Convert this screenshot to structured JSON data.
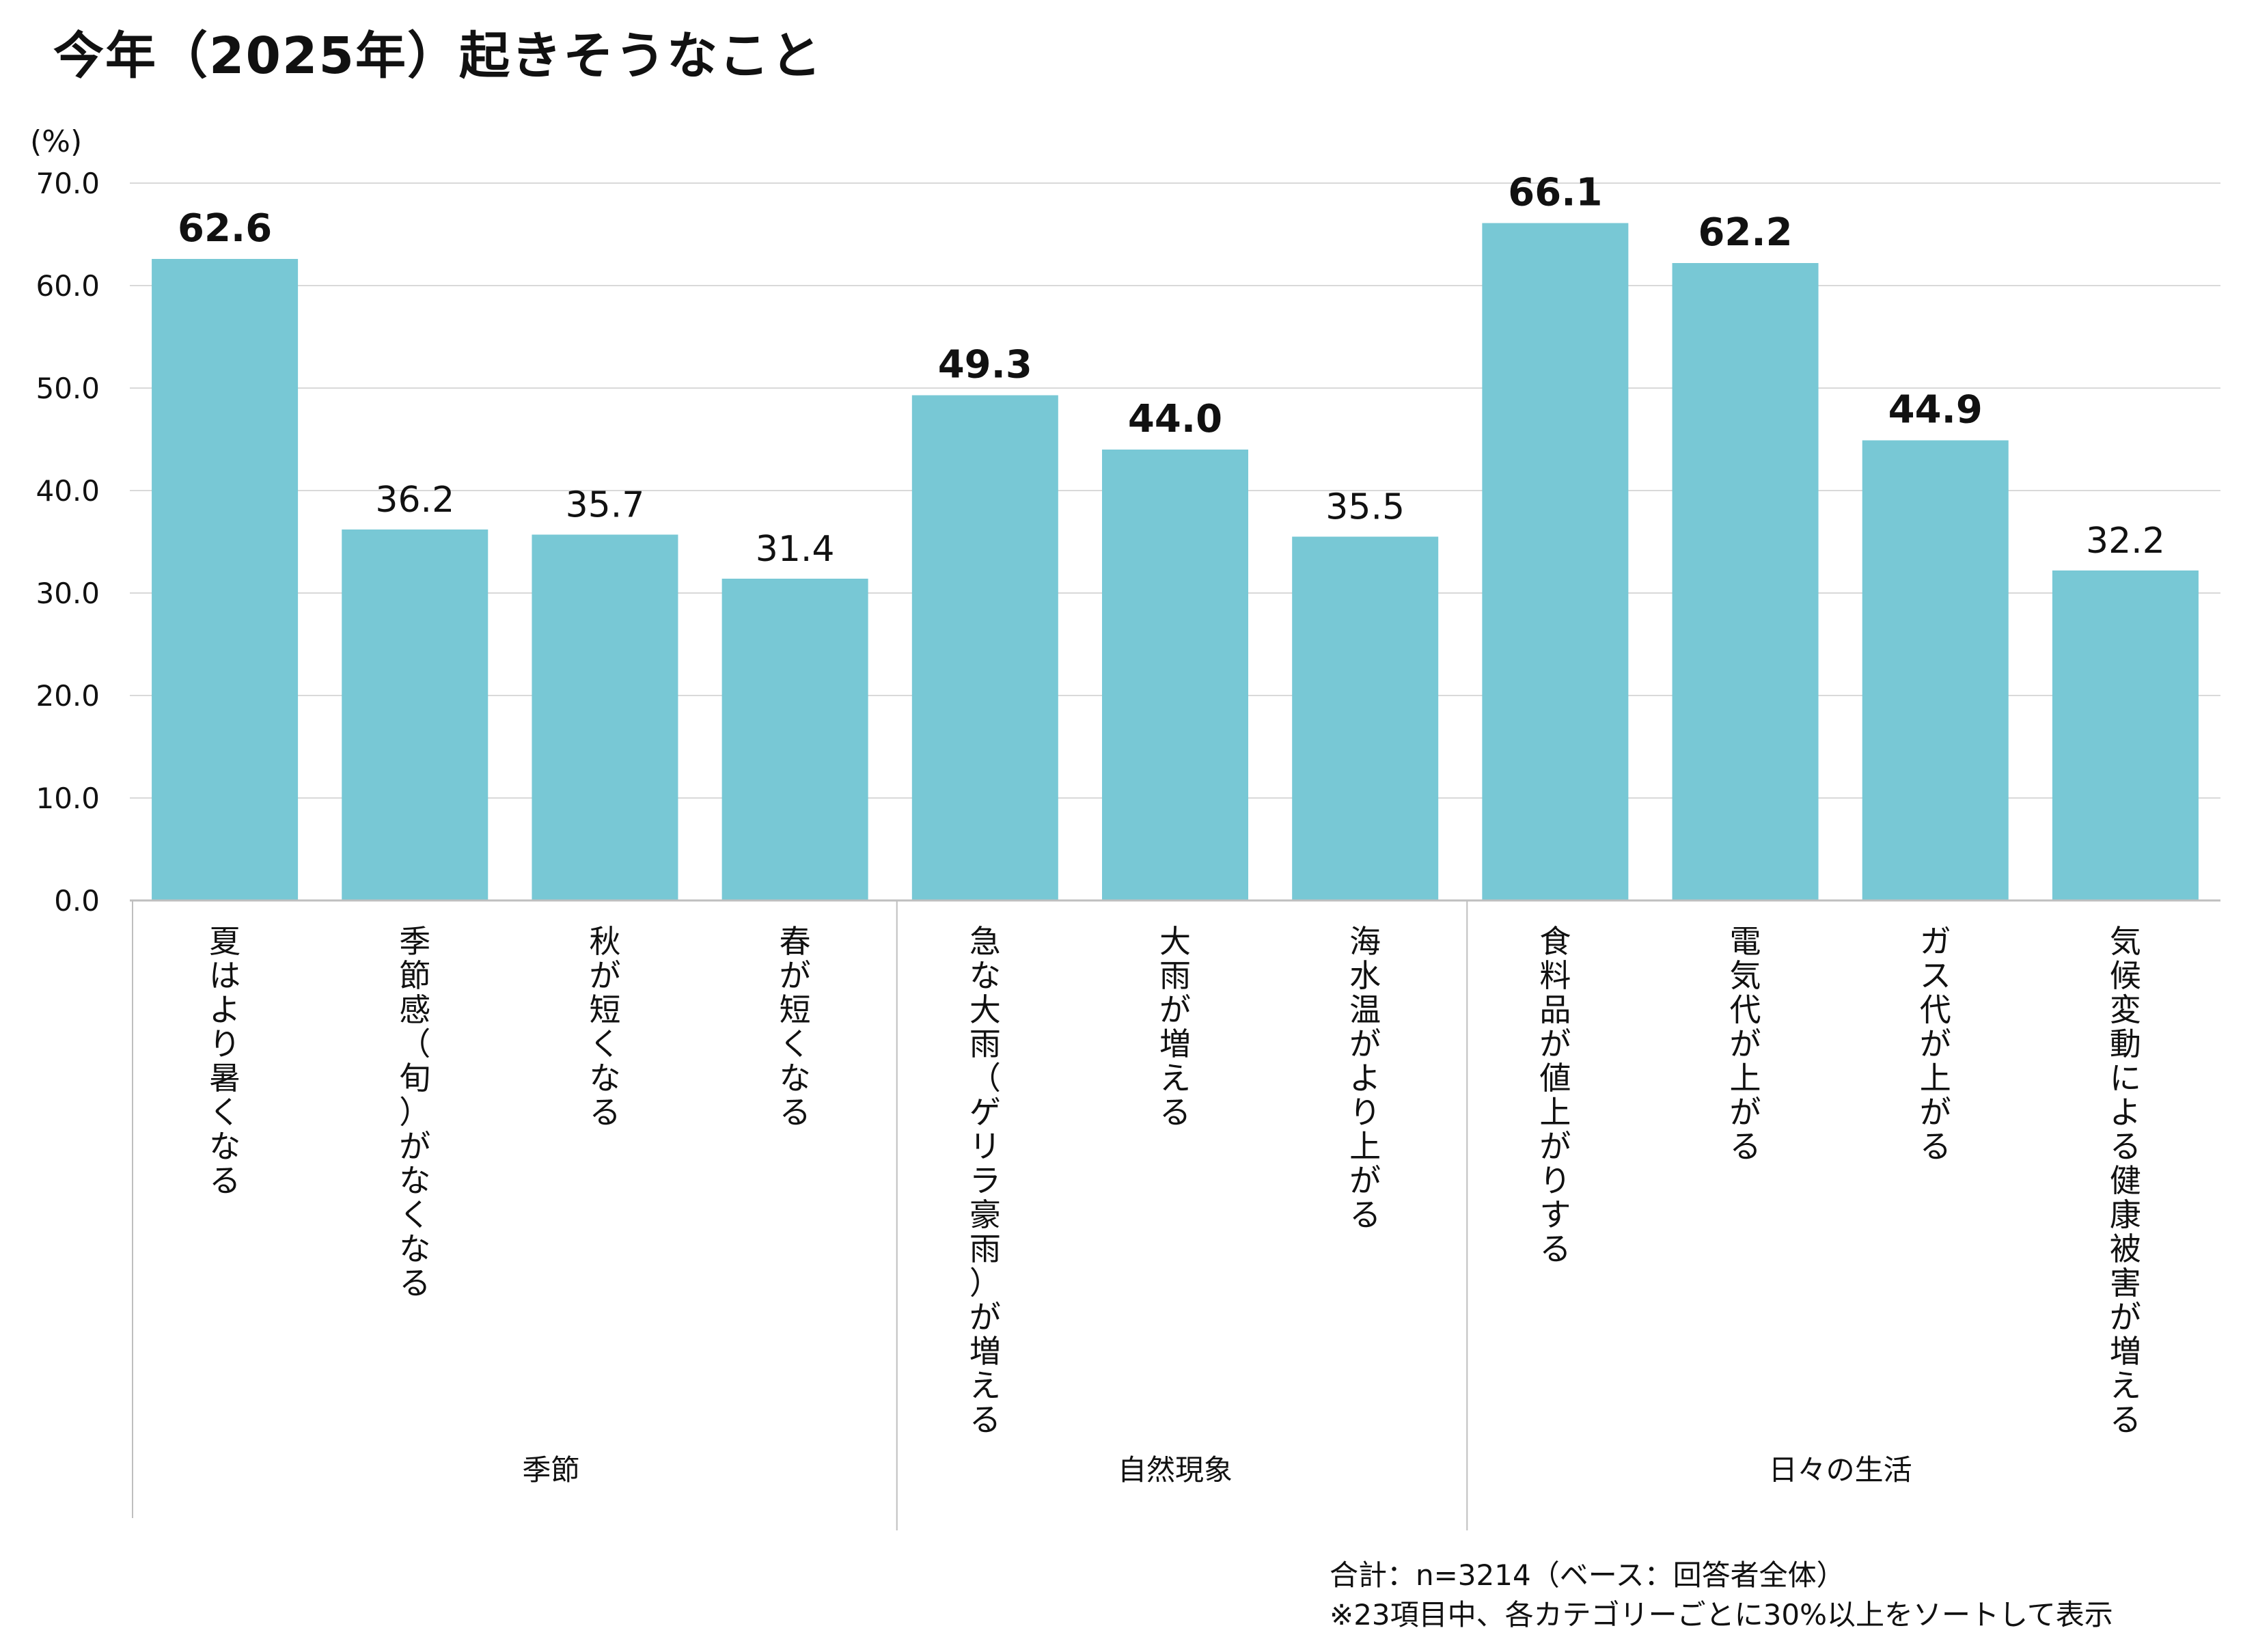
{
  "title": "今年（2025年）起きそうなこと",
  "footnote": {
    "line1": "合計：n=3214（ベース：回答者全体）",
    "line2": "※23項目中、各カテゴリーごとに30%以上をソートして表示"
  },
  "colors": {
    "bar": "#78C8D5",
    "grid": "#D9D9D9",
    "axis": "#BFBFBF"
  },
  "chart_data": {
    "type": "bar",
    "title": "今年（2025年）起きそうなこと",
    "ylabel": "(%)",
    "xlabel": "",
    "ylim": [
      0,
      70
    ],
    "yticks": [
      "0.0",
      "10.0",
      "20.0",
      "30.0",
      "40.0",
      "50.0",
      "60.0",
      "70.0"
    ],
    "grid": true,
    "categories": [
      "夏はより暑くなる",
      "季節感（旬）がなくなる",
      "秋が短くなる",
      "春が短くなる",
      "急な大雨（ゲリラ豪雨）が増える",
      "大雨が増える",
      "海水温がより上がる",
      "食料品が値上がりする",
      "電気代が上がる",
      "ガス代が上がる",
      "気候変動による健康被害が増える"
    ],
    "values": [
      62.6,
      36.2,
      35.7,
      31.4,
      49.3,
      44.0,
      35.5,
      66.1,
      62.2,
      44.9,
      32.2
    ],
    "value_labels": [
      "62.6",
      "36.2",
      "35.7",
      "31.4",
      "49.3",
      "44.0",
      "35.5",
      "66.1",
      "62.2",
      "44.9",
      "32.2"
    ],
    "emphasized": [
      true,
      false,
      false,
      false,
      true,
      true,
      false,
      true,
      true,
      true,
      false
    ],
    "groups": [
      {
        "label": "季節",
        "count": 4
      },
      {
        "label": "自然現象",
        "count": 3
      },
      {
        "label": "日々の生活",
        "count": 4
      }
    ]
  }
}
